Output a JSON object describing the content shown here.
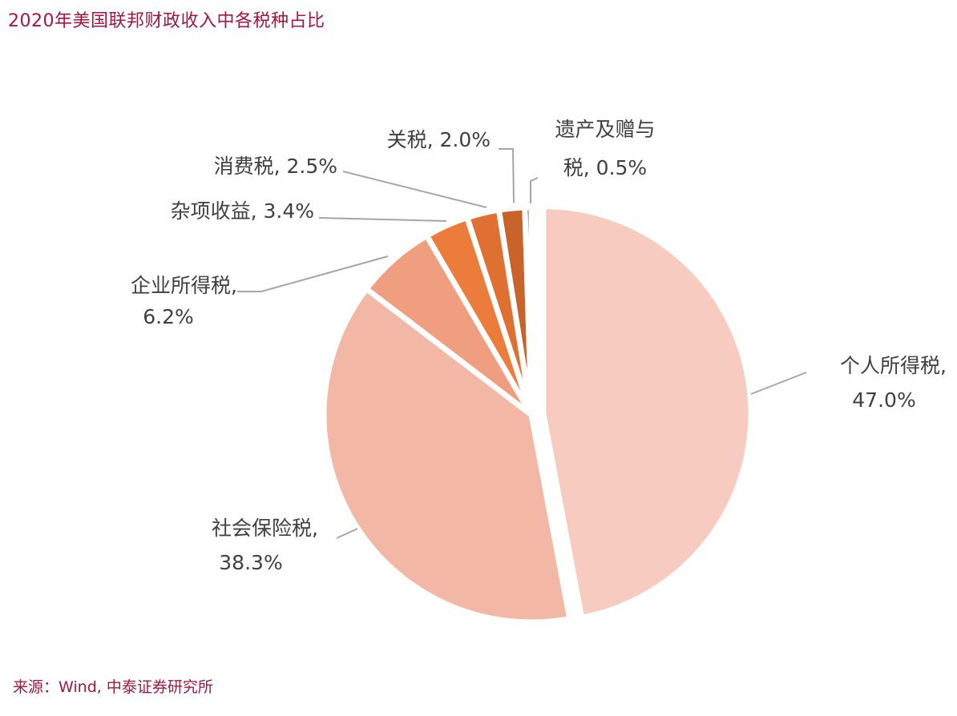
{
  "title": "2020年美国联邦财政收入中各税种占比",
  "source": "来源：Wind, 中泰证券研究所",
  "chart_data": {
    "type": "pie",
    "title": "2020年美国联邦财政收入中各税种占比",
    "slices": [
      {
        "name": "个人所得税",
        "value": 47.0,
        "label_lines": [
          "个人所得税,",
          "47.0%"
        ],
        "color": "#f7cbbf"
      },
      {
        "name": "社会保险税",
        "value": 38.3,
        "label_lines": [
          "社会保险税,",
          "38.3%"
        ],
        "color": "#f3b8a5"
      },
      {
        "name": "企业所得税",
        "value": 6.2,
        "label_lines": [
          "企业所得税,",
          "6.2%"
        ],
        "color": "#ef9e7f"
      },
      {
        "name": "杂项收益",
        "value": 3.4,
        "label_lines": [
          "杂项收益, 3.4%"
        ],
        "color": "#ec7c3b"
      },
      {
        "name": "消费税",
        "value": 2.5,
        "label_lines": [
          "消费税, 2.5%"
        ],
        "color": "#de7031"
      },
      {
        "name": "关税",
        "value": 2.0,
        "label_lines": [
          "关税, 2.0%"
        ],
        "color": "#c8632a"
      },
      {
        "name": "遗产及赠与税",
        "value": 0.5,
        "label_lines": [
          "遗产及赠与",
          "税, 0.5%"
        ],
        "color": "#b05623"
      }
    ],
    "start": "12 o'clock",
    "direction": "clockwise",
    "exploded_slice": "个人所得税"
  }
}
